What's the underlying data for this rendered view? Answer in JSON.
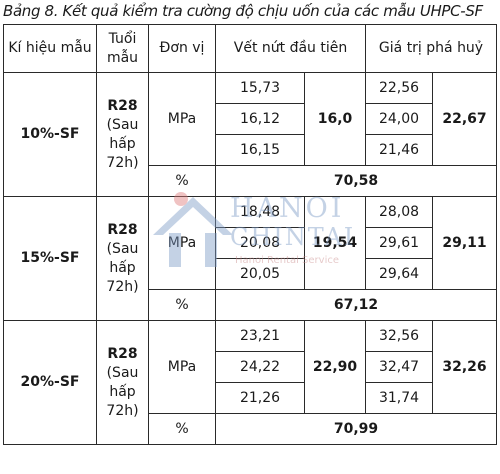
{
  "caption": "Bảng 8. Kết quả kiểm tra cường độ chịu uốn của các mẫu UHPC-SF",
  "headers": {
    "symbol": "Kí hiệu mẫu",
    "age": "Tuổi mẫu",
    "unit": "Đơn vị",
    "first_crack": "Vết nứt đầu tiên",
    "failure": "Giá trị phá huỷ"
  },
  "groups": [
    {
      "symbol": "10%-SF",
      "age": "R28",
      "age_note": "(Sau hấp 72h)",
      "unit": "MPa",
      "crack_values": [
        "15,73",
        "16,12",
        "16,15"
      ],
      "crack_avg": "16,0",
      "failure_values": [
        "22,56",
        "24,00",
        "21,46"
      ],
      "failure_avg": "22,67",
      "percent_unit": "%",
      "percent": "70,58"
    },
    {
      "symbol": "15%-SF",
      "age": "R28",
      "age_note": "(Sau hấp 72h)",
      "unit": "MPa",
      "crack_values": [
        "18,48",
        "20,08",
        "20,05"
      ],
      "crack_avg": "19,54",
      "failure_values": [
        "28,08",
        "29,61",
        "29,64"
      ],
      "failure_avg": "29,11",
      "percent_unit": "%",
      "percent": "67,12"
    },
    {
      "symbol": "20%-SF",
      "age": "R28",
      "age_note": "(Sau hấp 72h)",
      "unit": "MPa",
      "crack_values": [
        "23,21",
        "24,22",
        "21,26"
      ],
      "crack_avg": "22,90",
      "failure_values": [
        "32,56",
        "32,47",
        "31,74"
      ],
      "failure_avg": "32,26",
      "percent_unit": "%",
      "percent": "70,99"
    }
  ],
  "watermark": {
    "line1": "HANOI",
    "line2": "CHINTAI",
    "line3": "Hanoi Rental Service"
  }
}
